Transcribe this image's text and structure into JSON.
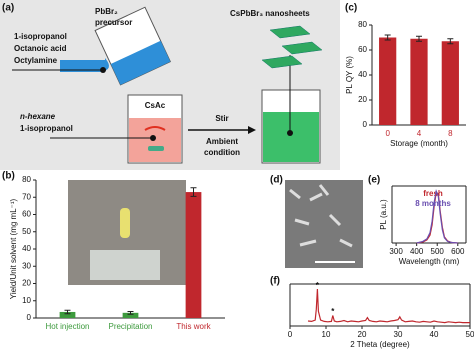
{
  "panel_labels": [
    "(a)",
    "(b)",
    "(c)",
    "(d)",
    "(e)",
    "(f)"
  ],
  "schematic": {
    "solvents_left": [
      "1-isopropanol",
      "Octanoic acid",
      "Octylamine"
    ],
    "precursor": [
      "PbBr₂",
      "precursor"
    ],
    "product": "CsPbBr₃ nanosheets",
    "salt": "CsAc",
    "solvents_bottom": [
      "n-hexane",
      "1-isopropanol"
    ],
    "step": "Stir",
    "condition": [
      "Ambient",
      "condition"
    ]
  },
  "chart_data": [
    {
      "type": "bar",
      "ylabel": "Yield/Unit solvent (mg mL⁻¹)",
      "categories": [
        "Hot injection",
        "Precipitation",
        "This work"
      ],
      "values": [
        3.5,
        3,
        73
      ],
      "errors": [
        1,
        0.8,
        2.5
      ],
      "colors": [
        "#3d9a3d",
        "#3d9a3d",
        "#c0272d"
      ],
      "ylim": [
        0,
        80
      ],
      "yticks": [
        0,
        10,
        20,
        30,
        40,
        50,
        60,
        70,
        80
      ]
    },
    {
      "type": "bar",
      "ylabel": "PL QY (%)",
      "xlabel": "Storage (month)",
      "categories": [
        "0",
        "4",
        "8"
      ],
      "values": [
        70,
        69,
        67
      ],
      "errors": [
        2,
        2,
        2
      ],
      "colors": [
        "#c0272d",
        "#c0272d",
        "#c0272d"
      ],
      "ylim": [
        0,
        80
      ],
      "yticks": [
        0,
        20,
        40,
        60,
        80
      ]
    },
    {
      "type": "line",
      "ylabel": "PL (a.u.)",
      "xlabel": "Wavelength (nm)",
      "x": [
        400,
        430,
        450,
        465,
        475,
        485,
        495,
        505,
        515,
        525,
        535,
        550,
        570,
        600
      ],
      "series": [
        {
          "name": "fresh",
          "color": "#c0272d",
          "values": [
            0,
            0.02,
            0.06,
            0.15,
            0.35,
            0.7,
            0.97,
            0.95,
            0.6,
            0.3,
            0.12,
            0.04,
            0.01,
            0
          ]
        },
        {
          "name": "8 months",
          "color": "#6a4fb0",
          "values": [
            0,
            0.03,
            0.08,
            0.2,
            0.42,
            0.78,
            1.0,
            0.9,
            0.55,
            0.25,
            0.1,
            0.03,
            0.01,
            0
          ]
        }
      ],
      "xlim": [
        280,
        640
      ],
      "xticks": [
        300,
        400,
        500,
        600
      ],
      "ylim": [
        0,
        1.1
      ]
    },
    {
      "type": "line",
      "xlabel": "2 Theta (degree)",
      "color": "#c0272d",
      "x": [
        5,
        6,
        7,
        7.3,
        7.6,
        7.9,
        8.5,
        9.5,
        10.5,
        11.5,
        11.9,
        12.3,
        13,
        14,
        15,
        16,
        17,
        18,
        19,
        20,
        21,
        21.5,
        22,
        23,
        24,
        25,
        26,
        27,
        28,
        29,
        30,
        30.5,
        31,
        32,
        33,
        34,
        35,
        36,
        37,
        38,
        39,
        40,
        41,
        42,
        43,
        44,
        45,
        46,
        47,
        48,
        49,
        50
      ],
      "values": [
        12,
        11,
        14,
        40,
        88,
        35,
        14,
        11,
        10,
        11,
        25,
        12,
        10,
        11,
        13,
        10,
        12,
        11,
        10,
        12,
        13,
        20,
        13,
        11,
        10,
        12,
        11,
        10,
        12,
        13,
        15,
        22,
        14,
        10,
        11,
        12,
        10,
        9,
        11,
        10,
        9,
        12,
        10,
        9,
        8,
        10,
        9,
        8,
        9,
        8,
        8,
        8
      ],
      "xlim": [
        0,
        50
      ],
      "xticks": [
        0,
        10,
        20,
        30,
        40,
        50
      ],
      "ylim": [
        0,
        100
      ],
      "annotations": [
        {
          "text": "*",
          "x": 7.6,
          "y": 96
        },
        {
          "text": "*",
          "x": 11.9,
          "y": 33
        }
      ]
    }
  ]
}
